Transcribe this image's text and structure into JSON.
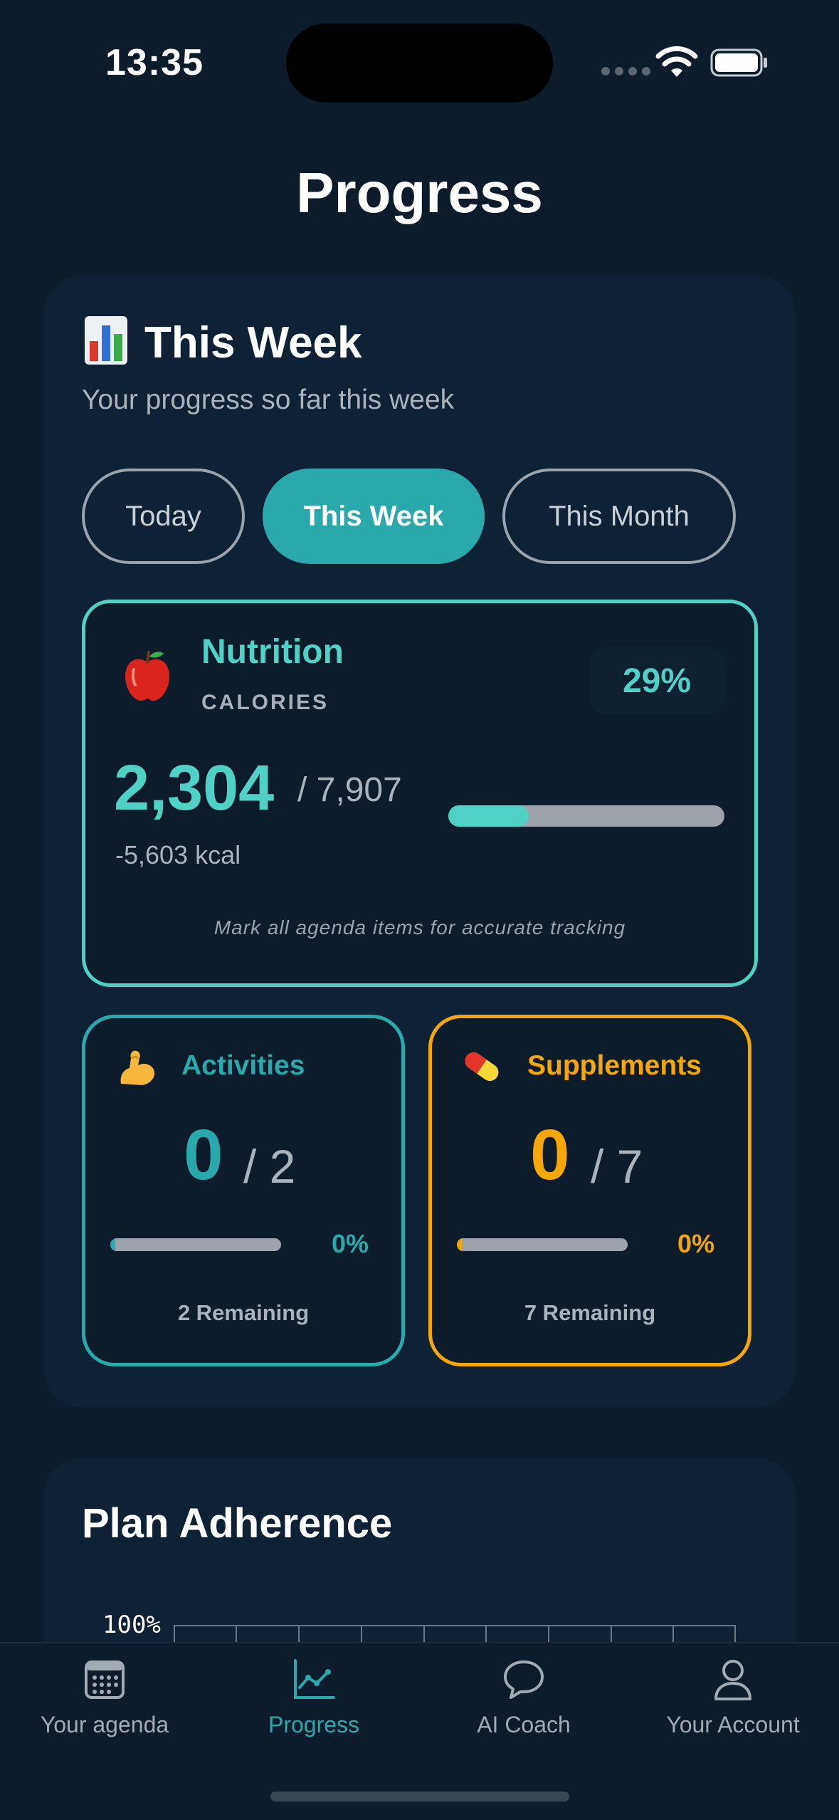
{
  "status": {
    "time": "13:35"
  },
  "page": {
    "title": "Progress"
  },
  "week_card": {
    "title": "This Week",
    "subtitle": "Your progress so far this week",
    "tabs": [
      {
        "label": "Today",
        "active": false
      },
      {
        "label": "This Week",
        "active": true
      },
      {
        "label": "This Month",
        "active": false
      }
    ]
  },
  "nutrition": {
    "title": "Nutrition",
    "subtitle": "CALORIES",
    "percent": "29%",
    "value": "2,304",
    "goal": "/ 7,907",
    "delta": "-5,603 kcal",
    "progress_fraction": 0.29,
    "note": "Mark all agenda items for accurate tracking"
  },
  "activities": {
    "label": "Activities",
    "value": "0",
    "goal": "/ 2",
    "percent": "0%",
    "progress_fraction": 0.0,
    "remaining": "2 Remaining",
    "color": "#2aa9ad"
  },
  "supplements": {
    "label": "Supplements",
    "value": "0",
    "goal": "/ 7",
    "percent": "0%",
    "progress_fraction": 0.0,
    "remaining": "7 Remaining",
    "color": "#f5a70a"
  },
  "adherence": {
    "title": "Plan Adherence",
    "y_top_label": "100%"
  },
  "nav": [
    {
      "label": "Your agenda",
      "icon": "calendar-icon",
      "active": false
    },
    {
      "label": "Progress",
      "icon": "chart-line-icon",
      "active": true
    },
    {
      "label": "AI Coach",
      "icon": "chat-bubble-icon",
      "active": false
    },
    {
      "label": "Your Account",
      "icon": "person-icon",
      "active": false
    }
  ],
  "colors": {
    "accent": "#2aa9ad",
    "nutrition": "#4fd1c5",
    "supplements": "#f5a70a",
    "background": "#0c1c2b"
  }
}
